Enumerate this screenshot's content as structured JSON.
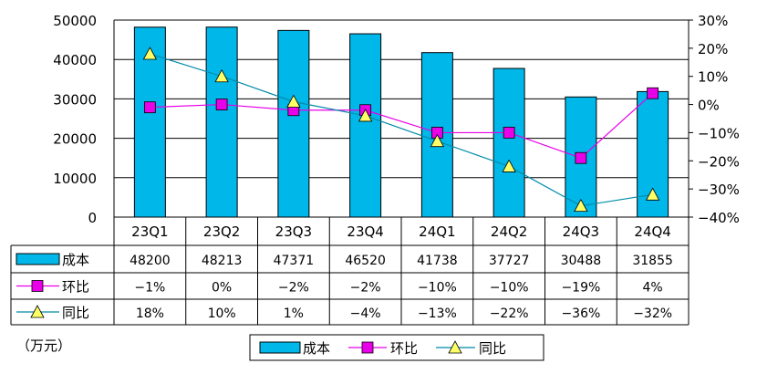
{
  "chart_data": {
    "type": "bar+line",
    "categories": [
      "23Q1",
      "23Q2",
      "23Q3",
      "23Q4",
      "24Q1",
      "24Q2",
      "24Q3",
      "24Q4"
    ],
    "series": [
      {
        "name": "成本",
        "type": "bar",
        "axis": "left",
        "values": [
          48200,
          48213,
          47371,
          46520,
          41738,
          37727,
          30488,
          31855
        ],
        "labels": [
          "48200",
          "48213",
          "47371",
          "46520",
          "41738",
          "37727",
          "30488",
          "31855"
        ]
      },
      {
        "name": "环比",
        "type": "line",
        "axis": "right",
        "values": [
          -1,
          0,
          -2,
          -2,
          -10,
          -10,
          -19,
          4
        ],
        "labels": [
          "−1%",
          "0%",
          "−2%",
          "−2%",
          "−10%",
          "−10%",
          "−19%",
          "4%"
        ]
      },
      {
        "name": "同比",
        "type": "line",
        "axis": "right",
        "values": [
          18,
          10,
          1,
          -4,
          -13,
          -22,
          -36,
          -32
        ],
        "labels": [
          "18%",
          "10%",
          "1%",
          "−4%",
          "−13%",
          "−22%",
          "−36%",
          "−32%"
        ]
      }
    ],
    "left_axis": {
      "ylim": [
        0,
        50000
      ],
      "ticks": [
        "0",
        "10000",
        "20000",
        "30000",
        "40000",
        "50000"
      ]
    },
    "right_axis": {
      "ylim": [
        -40,
        30
      ],
      "ticks": [
        "−40%",
        "−30%",
        "−20%",
        "−10%",
        "0%",
        "10%",
        "20%",
        "30%"
      ]
    },
    "unit_note": "（万元）",
    "grid": "horizontal",
    "legend": "bottom-center",
    "colors": {
      "bar": "#00B7EA",
      "huanbi": "#E800E8",
      "tongbi_line": "#008BA8",
      "tongbi_marker": "#FFFF66"
    }
  }
}
